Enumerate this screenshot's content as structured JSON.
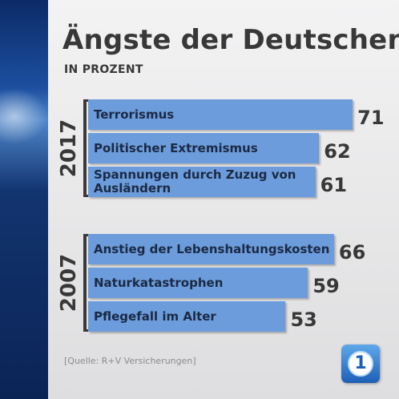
{
  "title": "Ängste der Deutschen",
  "subtitle": "IN PROZENT",
  "source": "[Quelle: R+V Versicherungen]",
  "logo": {
    "text": "1",
    "icon": "ard-logo-icon"
  },
  "colors": {
    "bar": "#6d9cdc",
    "text": "#383838",
    "accent": "#0c2a66"
  },
  "chart_data": {
    "type": "bar",
    "orientation": "horizontal",
    "title": "Ängste der Deutschen",
    "subtitle": "IN PROZENT",
    "xlim": [
      0,
      100
    ],
    "grid": false,
    "groups": [
      {
        "year": "2017",
        "categories": [
          "Terrorismus",
          "Politischer Extremismus",
          "Spannungen durch Zuzug von Ausländern"
        ],
        "values": [
          71,
          62,
          61
        ]
      },
      {
        "year": "2007",
        "categories": [
          "Anstieg der Lebenshaltungskosten",
          "Naturkatastrophen",
          "Pflegefall im Alter"
        ],
        "values": [
          66,
          59,
          53
        ]
      }
    ]
  }
}
